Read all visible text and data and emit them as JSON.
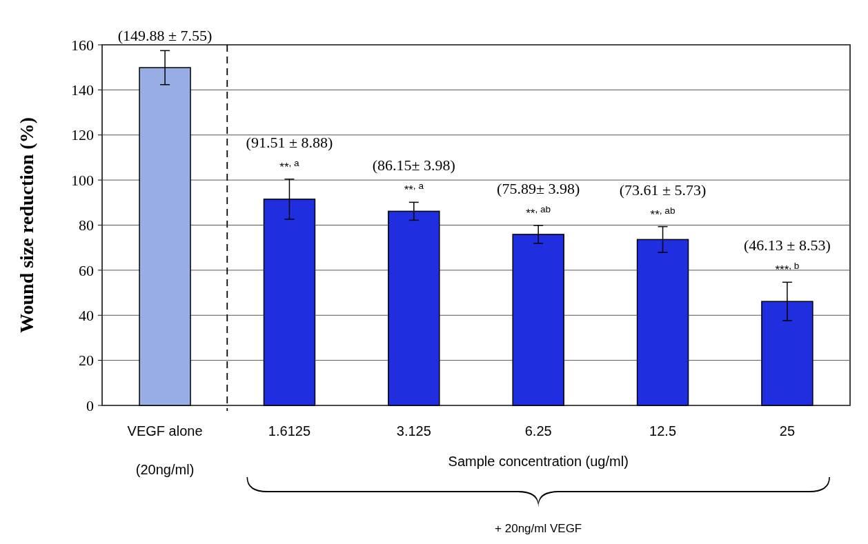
{
  "chart_data": {
    "type": "bar",
    "ylabel": "Wound size reduction (%)",
    "xlabel": "Sample concentration (ug/ml)",
    "categories": [
      "VEGF alone\n(20ng/ml)",
      "1.6125",
      "3.125",
      "6.25",
      "12.5",
      "25"
    ],
    "values": [
      149.88,
      91.51,
      86.15,
      75.89,
      73.61,
      46.13
    ],
    "errors": [
      7.55,
      8.88,
      3.98,
      3.98,
      5.73,
      8.53
    ],
    "value_labels": [
      "(149.88 ± 7.55)",
      "(91.51 ± 8.88)",
      "(86.15± 3.98)",
      "(75.89± 3.98)",
      "(73.61 ± 5.73)",
      "(46.13 ± 8.53)"
    ],
    "colors": [
      "#9aaee6",
      "#1f2fe0",
      "#1f2fe0",
      "#1f2fe0",
      "#1f2fe0",
      "#1f2fe0"
    ],
    "ylim": [
      0,
      160
    ],
    "yticks": [
      0,
      20,
      40,
      60,
      80,
      100,
      120,
      140,
      160
    ],
    "grid": "y",
    "annotations": [
      {
        "text": "**$^{, a}$",
        "x": "1.6125",
        "y": 100.39
      },
      {
        "text": "**$^{, a}$",
        "x": "3.125",
        "y": 90.13
      },
      {
        "text": "**$^{, ab}$",
        "x": "6.25",
        "y": 79.87
      },
      {
        "text": "**$^{, ab}$",
        "x": "12.5",
        "y": 79.34
      },
      {
        "text": "***$^{, b}$",
        "x": "25",
        "y": 54.66
      },
      "+ 20ng/ml VEGF"
    ]
  }
}
